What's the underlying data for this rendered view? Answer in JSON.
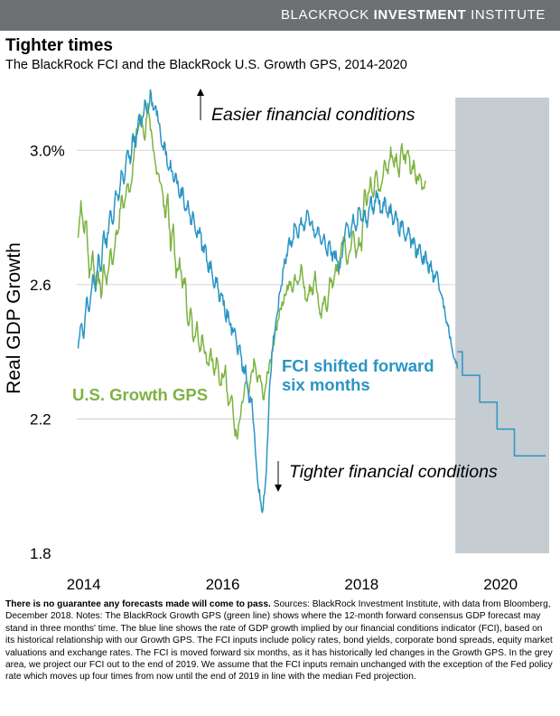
{
  "brand": {
    "part1": "BLACKROCK ",
    "part2": "INVESTMENT",
    "part3": " INSTITUTE"
  },
  "title": "Tighter times",
  "subtitle": "The BlackRock FCI and the BlackRock U.S. Growth GPS, 2014-2020",
  "footnote": {
    "bold": "There is no guarantee any forecasts made will come to pass.",
    "text": " Sources: BlackRock Investment Institute, with data from Bloomberg, December 2018. Notes: The BlackRock Growth GPS (green line) shows where the 12-month forward consensus GDP forecast may stand in three months' time. The blue line shows the rate of GDP growth implied by our financial conditions indicator (FCI), based on its historical relationship with our Growth GPS. The FCI inputs include policy rates, bond yields, corporate bond spreads, equity market valuations and exchange rates. The FCI is moved forward six months, as it has historically led changes in the Growth GPS. In the grey area, we project our FCI out to the end of 2019. We assume that the FCI inputs remain unchanged with the exception of the Fed policy rate which moves up four times from now until the end of 2019 in line with the median Fed projection."
  },
  "chart_data": {
    "type": "line",
    "ylabel": "Real GDP Growth",
    "xlabel": "",
    "xlim": [
      2013.9,
      2020.7
    ],
    "ylim": [
      1.8,
      3.2
    ],
    "x_ticks": [
      {
        "value": 2014,
        "label": "2014"
      },
      {
        "value": 2016,
        "label": "2016"
      },
      {
        "value": 2018,
        "label": "2018"
      },
      {
        "value": 2020,
        "label": "2020"
      }
    ],
    "y_ticks": [
      {
        "value": 3.0,
        "label": "3.0%"
      },
      {
        "value": 2.6,
        "label": "2.6"
      },
      {
        "value": 2.2,
        "label": "2.2"
      },
      {
        "value": 1.8,
        "label": "1.8"
      }
    ],
    "grid": "horizontal",
    "shaded_region": {
      "x_start": 2019.35,
      "x_end": 2020.7,
      "color": "#c5ccd2"
    },
    "annotations": [
      {
        "text": "Easier financial conditions",
        "arrow": "up"
      },
      {
        "text": "Tighter financial conditions",
        "arrow": "down"
      }
    ],
    "series": [
      {
        "name": "U.S. Growth GPS",
        "color": "#7db342",
        "x": [
          2013.92,
          2013.96,
          2014.0,
          2014.04,
          2014.08,
          2014.13,
          2014.17,
          2014.21,
          2014.25,
          2014.29,
          2014.33,
          2014.38,
          2014.42,
          2014.46,
          2014.5,
          2014.54,
          2014.58,
          2014.63,
          2014.67,
          2014.71,
          2014.75,
          2014.79,
          2014.83,
          2014.88,
          2014.92,
          2014.96,
          2015.0,
          2015.04,
          2015.08,
          2015.13,
          2015.17,
          2015.21,
          2015.25,
          2015.29,
          2015.33,
          2015.38,
          2015.42,
          2015.46,
          2015.5,
          2015.54,
          2015.58,
          2015.63,
          2015.67,
          2015.71,
          2015.75,
          2015.79,
          2015.83,
          2015.88,
          2015.92,
          2015.96,
          2016.0,
          2016.04,
          2016.08,
          2016.13,
          2016.17,
          2016.21,
          2016.25,
          2016.29,
          2016.33,
          2016.38,
          2016.42,
          2016.46,
          2016.5,
          2016.54,
          2016.58,
          2016.63,
          2016.67,
          2016.71,
          2016.75,
          2016.79,
          2016.83,
          2016.88,
          2016.92,
          2016.96,
          2017.0,
          2017.04,
          2017.08,
          2017.13,
          2017.17,
          2017.21,
          2017.25,
          2017.29,
          2017.33,
          2017.38,
          2017.42,
          2017.46,
          2017.5,
          2017.54,
          2017.58,
          2017.63,
          2017.67,
          2017.71,
          2017.75,
          2017.79,
          2017.83,
          2017.88,
          2017.92,
          2017.96,
          2018.0,
          2018.04,
          2018.08,
          2018.13,
          2018.17,
          2018.21,
          2018.25,
          2018.29,
          2018.33,
          2018.38,
          2018.42,
          2018.46,
          2018.5,
          2018.54,
          2018.58,
          2018.63,
          2018.67,
          2018.71,
          2018.75,
          2018.79,
          2018.83,
          2018.88,
          2018.92
        ],
        "values": [
          2.74,
          2.85,
          2.76,
          2.79,
          2.62,
          2.7,
          2.58,
          2.64,
          2.56,
          2.66,
          2.6,
          2.7,
          2.66,
          2.75,
          2.76,
          2.86,
          2.83,
          2.9,
          2.88,
          2.96,
          3.04,
          3.07,
          3.1,
          3.03,
          3.14,
          3.06,
          3.0,
          2.95,
          2.93,
          2.88,
          2.8,
          2.87,
          2.7,
          2.78,
          2.62,
          2.68,
          2.59,
          2.62,
          2.48,
          2.53,
          2.43,
          2.49,
          2.4,
          2.45,
          2.4,
          2.36,
          2.41,
          2.33,
          2.38,
          2.3,
          2.33,
          2.36,
          2.24,
          2.27,
          2.17,
          2.14,
          2.2,
          2.25,
          2.31,
          2.27,
          2.34,
          2.37,
          2.31,
          2.33,
          2.26,
          2.31,
          2.36,
          2.4,
          2.45,
          2.49,
          2.53,
          2.55,
          2.58,
          2.61,
          2.58,
          2.63,
          2.6,
          2.66,
          2.59,
          2.55,
          2.6,
          2.57,
          2.64,
          2.54,
          2.5,
          2.56,
          2.52,
          2.62,
          2.59,
          2.66,
          2.63,
          2.72,
          2.74,
          2.66,
          2.7,
          2.76,
          2.68,
          2.74,
          2.7,
          2.88,
          2.84,
          2.92,
          2.86,
          2.94,
          2.88,
          2.9,
          2.97,
          2.93,
          3.01,
          2.96,
          2.99,
          2.92,
          3.02,
          2.96,
          3.0,
          2.93,
          2.97,
          2.9,
          2.93,
          2.89,
          2.91
        ]
      },
      {
        "name": "FCI shifted forward six months",
        "color": "#2a95c3",
        "x": [
          2013.92,
          2013.96,
          2014.0,
          2014.04,
          2014.08,
          2014.13,
          2014.17,
          2014.21,
          2014.25,
          2014.29,
          2014.33,
          2014.38,
          2014.42,
          2014.46,
          2014.5,
          2014.54,
          2014.58,
          2014.63,
          2014.67,
          2014.71,
          2014.75,
          2014.79,
          2014.83,
          2014.88,
          2014.92,
          2014.96,
          2015.0,
          2015.04,
          2015.08,
          2015.13,
          2015.17,
          2015.21,
          2015.25,
          2015.29,
          2015.33,
          2015.38,
          2015.42,
          2015.46,
          2015.5,
          2015.54,
          2015.58,
          2015.63,
          2015.67,
          2015.71,
          2015.75,
          2015.79,
          2015.83,
          2015.88,
          2015.92,
          2015.96,
          2016.0,
          2016.04,
          2016.08,
          2016.13,
          2016.17,
          2016.21,
          2016.25,
          2016.29,
          2016.33,
          2016.38,
          2016.42,
          2016.46,
          2016.5,
          2016.54,
          2016.58,
          2016.63,
          2016.67,
          2016.71,
          2016.75,
          2016.79,
          2016.83,
          2016.88,
          2016.92,
          2016.96,
          2017.0,
          2017.04,
          2017.08,
          2017.13,
          2017.17,
          2017.21,
          2017.25,
          2017.29,
          2017.33,
          2017.38,
          2017.42,
          2017.46,
          2017.5,
          2017.54,
          2017.58,
          2017.63,
          2017.67,
          2017.71,
          2017.75,
          2017.79,
          2017.83,
          2017.88,
          2017.92,
          2017.96,
          2018.0,
          2018.04,
          2018.08,
          2018.13,
          2018.17,
          2018.21,
          2018.25,
          2018.29,
          2018.33,
          2018.38,
          2018.42,
          2018.46,
          2018.5,
          2018.54,
          2018.58,
          2018.63,
          2018.67,
          2018.71,
          2018.75,
          2018.79,
          2018.83,
          2018.88,
          2018.92,
          2018.96,
          2019.0,
          2019.04,
          2019.08,
          2019.13,
          2019.17,
          2019.21,
          2019.25,
          2019.29,
          2019.33,
          2019.38
        ],
        "values": [
          2.41,
          2.48,
          2.44,
          2.56,
          2.52,
          2.63,
          2.58,
          2.69,
          2.64,
          2.76,
          2.71,
          2.82,
          2.78,
          2.88,
          2.85,
          2.94,
          2.9,
          3.0,
          2.96,
          3.05,
          3.01,
          3.1,
          3.07,
          3.15,
          3.11,
          3.18,
          3.12,
          3.13,
          3.08,
          3.01,
          3.02,
          2.95,
          2.97,
          2.91,
          2.93,
          2.86,
          2.89,
          2.82,
          2.85,
          2.78,
          2.81,
          2.74,
          2.77,
          2.7,
          2.72,
          2.64,
          2.67,
          2.59,
          2.62,
          2.55,
          2.57,
          2.5,
          2.52,
          2.45,
          2.47,
          2.4,
          2.42,
          2.34,
          2.36,
          2.25,
          2.26,
          2.15,
          2.02,
          1.96,
          1.93,
          2.05,
          2.27,
          2.4,
          2.46,
          2.52,
          2.58,
          2.65,
          2.69,
          2.74,
          2.72,
          2.78,
          2.74,
          2.8,
          2.76,
          2.82,
          2.78,
          2.79,
          2.74,
          2.77,
          2.72,
          2.75,
          2.69,
          2.73,
          2.67,
          2.7,
          2.64,
          2.68,
          2.73,
          2.78,
          2.74,
          2.81,
          2.76,
          2.83,
          2.79,
          2.82,
          2.77,
          2.86,
          2.81,
          2.88,
          2.84,
          2.82,
          2.86,
          2.8,
          2.84,
          2.78,
          2.81,
          2.75,
          2.79,
          2.73,
          2.77,
          2.71,
          2.74,
          2.68,
          2.72,
          2.66,
          2.7,
          2.64,
          2.67,
          2.61,
          2.64,
          2.58,
          2.56,
          2.5,
          2.48,
          2.42,
          2.38,
          2.35
        ]
      },
      {
        "name": "FCI projection",
        "color": "#2a95c3",
        "step": true,
        "x": [
          2019.38,
          2019.45,
          2019.45,
          2019.7,
          2019.7,
          2019.95,
          2019.95,
          2020.2,
          2020.2,
          2020.65
        ],
        "values": [
          2.4,
          2.4,
          2.33,
          2.33,
          2.25,
          2.25,
          2.17,
          2.17,
          2.09,
          2.09
        ]
      }
    ]
  }
}
